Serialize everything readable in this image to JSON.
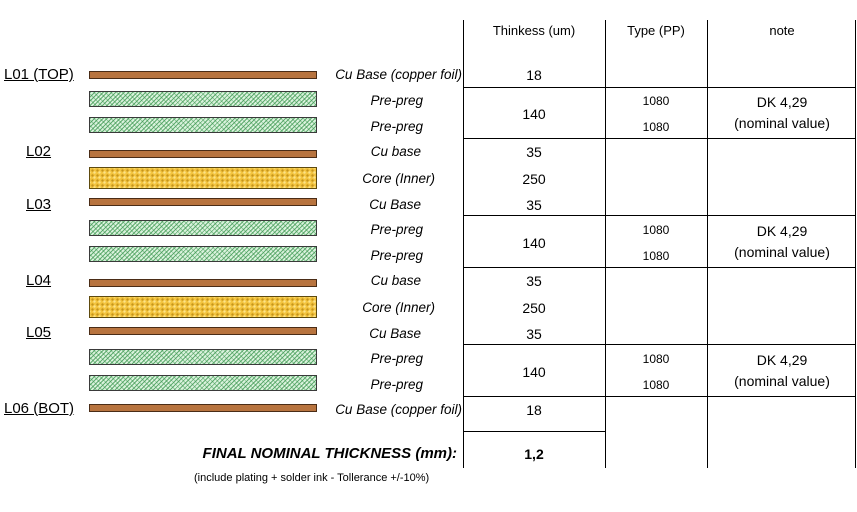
{
  "headers": {
    "thickness": "Thinkess (um)",
    "type": "Type (PP)",
    "note": "note"
  },
  "layer_labels": {
    "l01": "L01 (TOP)",
    "l02": "L02",
    "l03": "L03",
    "l04": "L04",
    "l05": "L05",
    "l06": "L06 (BOT)"
  },
  "stack": [
    {
      "material": "Cu Base (copper foil)",
      "kind": "copper"
    },
    {
      "material": "Pre-preg",
      "kind": "prepreg",
      "type": "1080"
    },
    {
      "material": "Pre-preg",
      "kind": "prepreg",
      "type": "1080"
    },
    {
      "material": "Cu base",
      "kind": "copper"
    },
    {
      "material": "Core (Inner)",
      "kind": "core"
    },
    {
      "material": "Cu Base",
      "kind": "copper"
    },
    {
      "material": "Pre-preg",
      "kind": "prepreg",
      "type": "1080"
    },
    {
      "material": "Pre-preg",
      "kind": "prepreg",
      "type": "1080"
    },
    {
      "material": "Cu base",
      "kind": "copper"
    },
    {
      "material": "Core (Inner)",
      "kind": "core"
    },
    {
      "material": "Cu Base",
      "kind": "copper"
    },
    {
      "material": "Pre-preg",
      "kind": "prepreg",
      "type": "1080"
    },
    {
      "material": "Pre-preg",
      "kind": "prepreg",
      "type": "1080"
    },
    {
      "material": "Cu Base (copper foil)",
      "kind": "copper"
    }
  ],
  "thickness_values": [
    "18",
    "140",
    "35",
    "250",
    "35",
    "140",
    "35",
    "250",
    "35",
    "140",
    "18"
  ],
  "notes": [
    {
      "line1": "DK 4,29",
      "line2": "(nominal value)"
    },
    {
      "line1": "DK 4,29",
      "line2": "(nominal value)"
    },
    {
      "line1": "DK 4,29",
      "line2": "(nominal value)"
    }
  ],
  "final": {
    "label": "FINAL NOMINAL THICKNESS (mm):",
    "value": "1,2",
    "footnote": "(include plating + solder ink - Tollerance +/-10%)"
  },
  "colors": {
    "copper": "#b8743f",
    "prepreg": "#d9f2dc",
    "core": "#f3c43f"
  }
}
